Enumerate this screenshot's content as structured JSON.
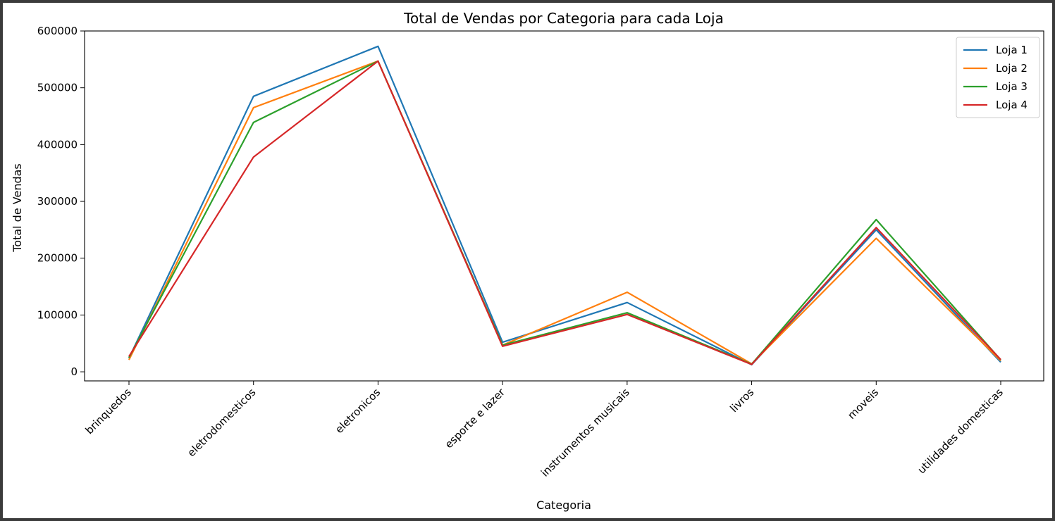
{
  "chart_data": {
    "type": "line",
    "title": "Total de Vendas por Categoria para cada Loja",
    "xlabel": "Categoria",
    "ylabel": "Total de Vendas",
    "categories": [
      "brinquedos",
      "eletrodomesticos",
      "eletronicos",
      "esporte e lazer",
      "instrumentos musicais",
      "livros",
      "moveis",
      "utilidades domesticas"
    ],
    "yticks": [
      0,
      100000,
      200000,
      300000,
      400000,
      500000,
      600000
    ],
    "ylim": [
      -16000,
      600000
    ],
    "grid": false,
    "legend_position": "top-right",
    "series": [
      {
        "name": "Loja 1",
        "color": "#1f77b4",
        "values": [
          24000,
          485000,
          573000,
          52000,
          122000,
          12500,
          250000,
          17000
        ]
      },
      {
        "name": "Loja 2",
        "color": "#ff7f0e",
        "values": [
          21000,
          465000,
          547000,
          47000,
          140000,
          14000,
          235000,
          19500
        ]
      },
      {
        "name": "Loja 3",
        "color": "#2ca02c",
        "values": [
          25000,
          439000,
          547000,
          47000,
          104000,
          13500,
          268000,
          21000
        ]
      },
      {
        "name": "Loja 4",
        "color": "#d62728",
        "values": [
          27000,
          378000,
          547000,
          45000,
          101000,
          13000,
          254000,
          21500
        ]
      }
    ]
  }
}
